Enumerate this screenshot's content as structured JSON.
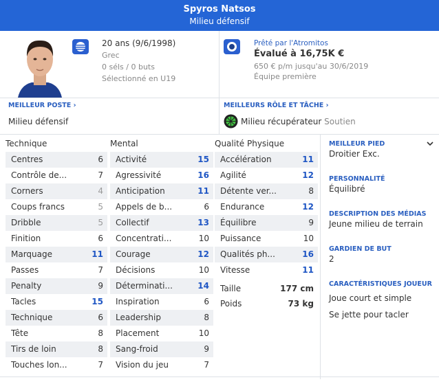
{
  "header": {
    "name": "Spyros Natsos",
    "position": "Milieu défensif"
  },
  "info": {
    "age": "20 ans (9/6/1998)",
    "nationality": "Grec",
    "caps": "0 séls / 0 buts",
    "selected": "Sélectionné en U19"
  },
  "contract": {
    "loan": "Prêté par l'Atromitos",
    "value": "Évalué à 16,75K €",
    "wage": "650 € p/m jusqu'au 30/6/2019",
    "squad": "Équipe première"
  },
  "best_position": {
    "title": "MEILLEUR POSTE",
    "value": "Milieu défensif"
  },
  "best_role": {
    "title": "MEILLEURS RÔLE ET TÂCHE",
    "role": "Milieu récupérateur",
    "duty": "Soutien"
  },
  "attributes": [
    {
      "title": "Technique",
      "items": [
        {
          "name": "Centres",
          "value": 6
        },
        {
          "name": "Contrôle de...",
          "value": 7
        },
        {
          "name": "Corners",
          "value": 4
        },
        {
          "name": "Coups francs",
          "value": 5
        },
        {
          "name": "Dribble",
          "value": 5
        },
        {
          "name": "Finition",
          "value": 6
        },
        {
          "name": "Marquage",
          "value": 11
        },
        {
          "name": "Passes",
          "value": 7
        },
        {
          "name": "Penalty",
          "value": 9
        },
        {
          "name": "Tacles",
          "value": 15
        },
        {
          "name": "Technique",
          "value": 6
        },
        {
          "name": "Tête",
          "value": 8
        },
        {
          "name": "Tirs de loin",
          "value": 8
        },
        {
          "name": "Touches lon...",
          "value": 7
        }
      ]
    },
    {
      "title": "Mental",
      "items": [
        {
          "name": "Activité",
          "value": 15
        },
        {
          "name": "Agressivité",
          "value": 16
        },
        {
          "name": "Anticipation",
          "value": 11
        },
        {
          "name": "Appels de b...",
          "value": 6
        },
        {
          "name": "Collectif",
          "value": 13
        },
        {
          "name": "Concentrati...",
          "value": 10
        },
        {
          "name": "Courage",
          "value": 12
        },
        {
          "name": "Décisions",
          "value": 10
        },
        {
          "name": "Déterminati...",
          "value": 14
        },
        {
          "name": "Inspiration",
          "value": 6
        },
        {
          "name": "Leadership",
          "value": 8
        },
        {
          "name": "Placement",
          "value": 10
        },
        {
          "name": "Sang-froid",
          "value": 9
        },
        {
          "name": "Vision du jeu",
          "value": 7
        }
      ]
    },
    {
      "title": "Qualité Physique",
      "items": [
        {
          "name": "Accélération",
          "value": 11
        },
        {
          "name": "Agilité",
          "value": 12
        },
        {
          "name": "Détente ver...",
          "value": 8
        },
        {
          "name": "Endurance",
          "value": 12
        },
        {
          "name": "Équilibre",
          "value": 9
        },
        {
          "name": "Puissance",
          "value": 10
        },
        {
          "name": "Qualités ph...",
          "value": 16
        },
        {
          "name": "Vitesse",
          "value": 11
        }
      ]
    }
  ],
  "physique_extra": [
    {
      "name": "Taille",
      "value": "177 cm"
    },
    {
      "name": "Poids",
      "value": "73 kg"
    }
  ],
  "side": {
    "foot": {
      "title": "MEILLEUR PIED",
      "value": "Droitier Exc."
    },
    "personality": {
      "title": "PERSONNALITÉ",
      "value": "Équilibré"
    },
    "media": {
      "title": "DESCRIPTION DES MÉDIAS",
      "value": "Jeune milieu de terrain"
    },
    "goalkeeper": {
      "title": "GARDIEN DE BUT",
      "value": "2"
    },
    "traits": {
      "title": "CARACTÉRISTIQUES JOUEUR",
      "values": [
        "Joue court et simple",
        "Se jette pour tacler"
      ]
    }
  }
}
